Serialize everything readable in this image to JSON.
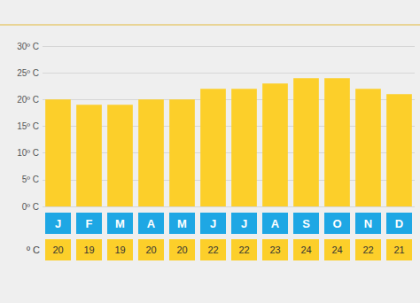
{
  "chart_data": {
    "type": "bar",
    "categories": [
      "J",
      "F",
      "M",
      "A",
      "M",
      "J",
      "J",
      "A",
      "S",
      "O",
      "N",
      "D"
    ],
    "values": [
      20,
      19,
      19,
      20,
      20,
      22,
      22,
      23,
      24,
      24,
      22,
      21
    ],
    "color": "#fccf2a",
    "ylim": [
      0,
      30
    ],
    "yticks": [
      {
        "value": 0,
        "label": "0º C"
      },
      {
        "value": 5,
        "label": "5º C"
      },
      {
        "value": 10,
        "label": "10º C"
      },
      {
        "value": 15,
        "label": "15º C"
      },
      {
        "value": 20,
        "label": "20º C"
      },
      {
        "value": 25,
        "label": "25º C"
      },
      {
        "value": 30,
        "label": "30º C"
      }
    ],
    "grid": true,
    "data_labels": true,
    "annotations": [
      "º C"
    ]
  }
}
